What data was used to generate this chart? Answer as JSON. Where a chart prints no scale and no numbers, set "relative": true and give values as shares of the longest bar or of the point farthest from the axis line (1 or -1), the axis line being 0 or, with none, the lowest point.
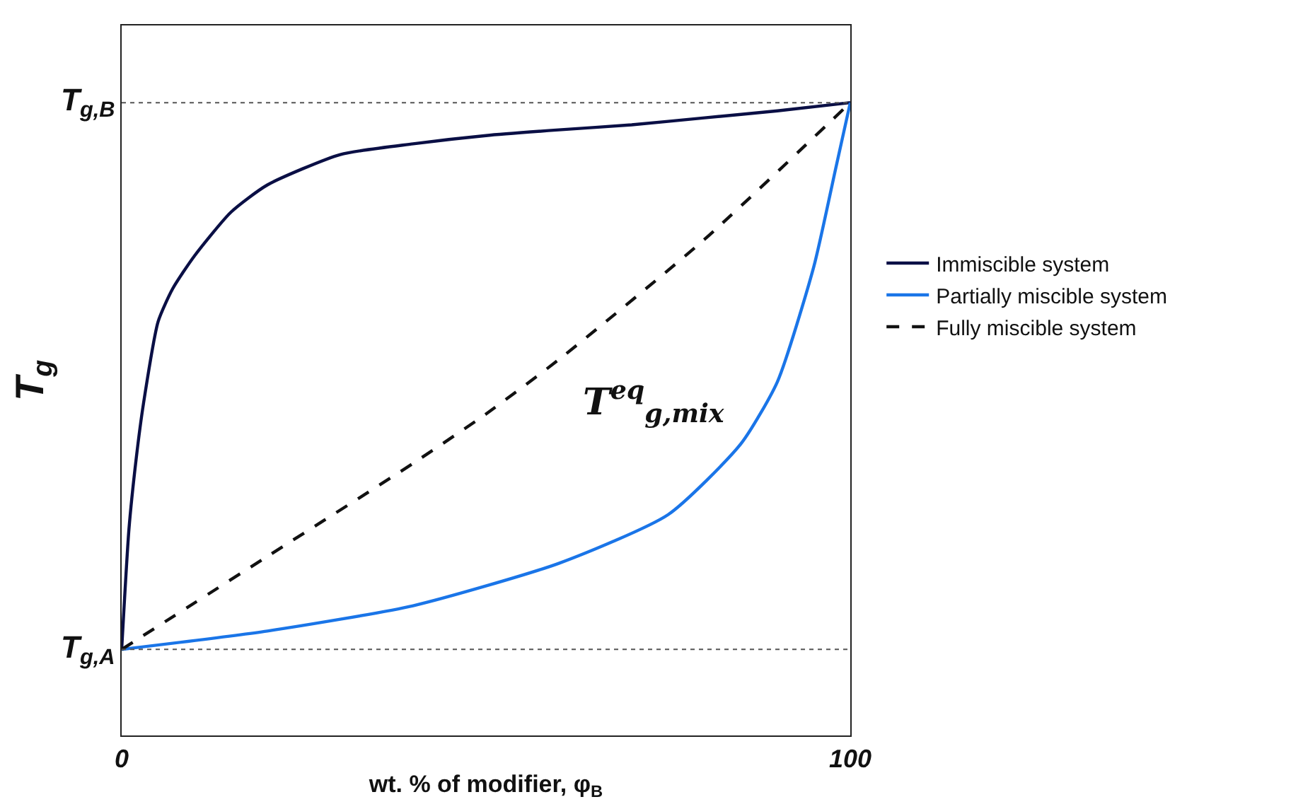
{
  "chart_data": {
    "type": "line",
    "relative": true,
    "xlabel": "wt. % of modifier, φ$_{B}$",
    "ylabel": "T$_{g}$",
    "xlim": [
      0,
      100
    ],
    "xticks": [
      0,
      100
    ],
    "legend": "right",
    "marker": "none",
    "ref_lines": [
      {
        "axis": "y",
        "value": 0.136,
        "label": "T$_{g,A}$",
        "color": "#555555",
        "line_style": "dotted"
      },
      {
        "axis": "y",
        "value": 1,
        "label": "T$_{g,B}$",
        "color": "#555555",
        "line_style": "dotted"
      }
    ],
    "annotations": [
      "T$^{eq}$$_{g,mix}$"
    ],
    "series": [
      {
        "name": "Immiscible system",
        "color": "#0a0f45",
        "line_style": "solid",
        "x": [
          0,
          1,
          2,
          3,
          5,
          7,
          10,
          15,
          20,
          30,
          40,
          50,
          60,
          70,
          80,
          90,
          100
        ],
        "values": [
          0.136,
          0.326,
          0.438,
          0.525,
          0.654,
          0.706,
          0.758,
          0.827,
          0.87,
          0.918,
          0.935,
          0.948,
          0.957,
          0.965,
          0.976,
          0.987,
          1
        ]
      },
      {
        "name": "Partially miscible system",
        "color": "#1a75e8",
        "line_style": "solid",
        "x": [
          0,
          20,
          40,
          60,
          75,
          85,
          90,
          95,
          98,
          100
        ],
        "values": [
          0.136,
          0.165,
          0.205,
          0.272,
          0.349,
          0.461,
          0.559,
          0.741,
          0.896,
          1
        ]
      },
      {
        "name": "Fully miscible system",
        "color": "#111111",
        "line_style": "dashed",
        "x": [
          0,
          20,
          40,
          50,
          60,
          80,
          100
        ],
        "values": [
          0.136,
          0.283,
          0.43,
          0.508,
          0.594,
          0.784,
          1
        ]
      }
    ]
  }
}
